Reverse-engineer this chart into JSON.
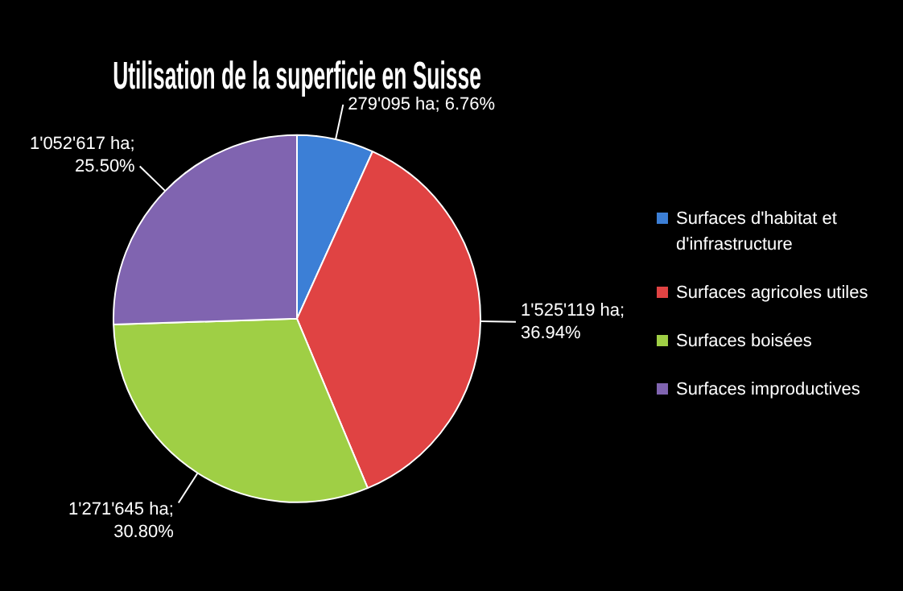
{
  "chart_data": {
    "type": "pie",
    "title": "Utilisation de la superficie en Suisse",
    "categories": [
      "Surfaces d'habitat et d'infrastructure",
      "Surfaces agricoles utiles",
      "Surfaces boisées",
      "Surfaces improductives"
    ],
    "values": [
      279095,
      1525119,
      1271645,
      1052617
    ],
    "colors": [
      "#3c7fd6",
      "#e04343",
      "#9fcf45",
      "#8064b0"
    ],
    "value_labels": [
      "279'095 ha; 6.76%",
      "1'525'119 ha; 36.94%",
      "1'271'645 ha; 30.80%",
      "1'052'617 ha; 25.50%"
    ],
    "legend": "right"
  }
}
